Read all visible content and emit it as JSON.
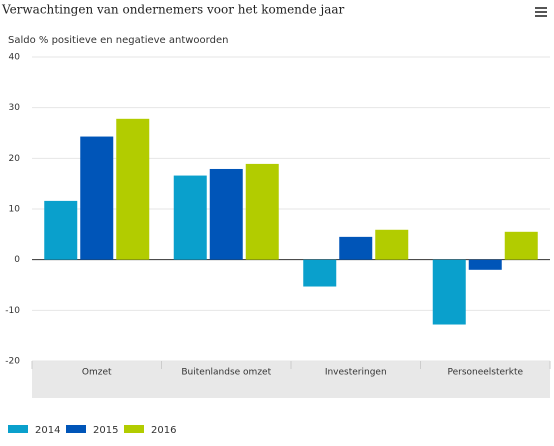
{
  "chart_data": {
    "type": "bar",
    "title": "Verwachtingen van ondernemers voor het komende jaar",
    "subtitle": "Saldo % positieve en negatieve antwoorden",
    "categories": [
      "Omzet",
      "Buitenlandse omzet",
      "Investeringen",
      "Personeelsterkte"
    ],
    "series": [
      {
        "name": "2014",
        "color": "#0aa0cc",
        "values": [
          11.6,
          16.6,
          -5.3,
          -12.8
        ]
      },
      {
        "name": "2015",
        "color": "#0055b8",
        "values": [
          24.3,
          17.9,
          4.5,
          -2
        ]
      },
      {
        "name": "2016",
        "color": "#b2cc00",
        "values": [
          27.8,
          18.9,
          5.9,
          5.5
        ]
      }
    ],
    "ylim": [
      -20,
      40
    ],
    "yticks": [
      -20,
      -10,
      0,
      10,
      20,
      30,
      40
    ],
    "grid": true
  }
}
